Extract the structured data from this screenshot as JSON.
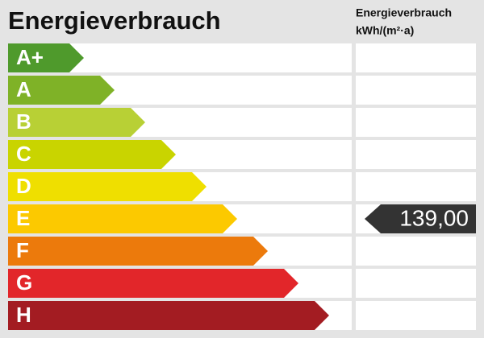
{
  "header": {
    "title": "Energieverbrauch",
    "column_title": "Energieverbrauch",
    "column_unit": "kWh/(m²·a)"
  },
  "classes": [
    {
      "label": "A+",
      "color": "#4f9a2c"
    },
    {
      "label": "A",
      "color": "#7fb227"
    },
    {
      "label": "B",
      "color": "#b8d035"
    },
    {
      "label": "C",
      "color": "#c9d400"
    },
    {
      "label": "D",
      "color": "#efdf00"
    },
    {
      "label": "E",
      "color": "#fcc900",
      "value": "139,00"
    },
    {
      "label": "F",
      "color": "#ec7a0c"
    },
    {
      "label": "G",
      "color": "#e2262a"
    },
    {
      "label": "H",
      "color": "#a31c22"
    }
  ]
}
